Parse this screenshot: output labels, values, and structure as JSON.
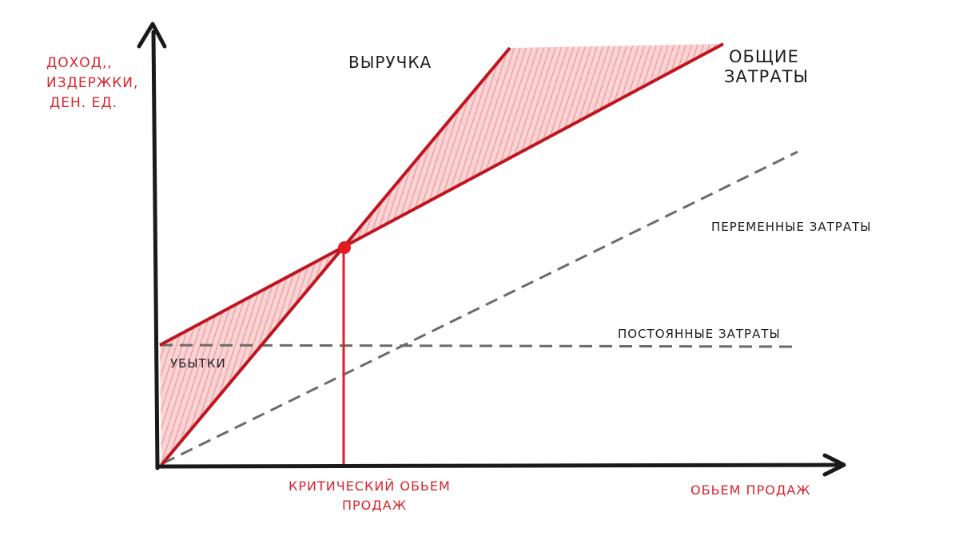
{
  "labels": {
    "y_axis": [
      "ДОХОД,,",
      "ИЗДЕРЖКИ,",
      "ДЕН. ЕД."
    ],
    "revenue": "ВЫРУЧКА",
    "total_costs": [
      "ОБЩИЕ",
      "ЗАТРАТЫ"
    ],
    "variable_costs": "ПЕРЕМЕННЫЕ ЗАТРАТЫ",
    "fixed_costs": "ПОСТОЯННЫЕ ЗАТРАТЫ",
    "losses": "УБЫТКИ",
    "break_even": [
      "КРИТИЧЕСКИЙ ОБЬЕМ",
      "ПРОДАЖ"
    ],
    "x_axis": "ОБЬЕМ ПРОДАЖ"
  },
  "colors": {
    "axis": "#1a1a1a",
    "accent_red": "#c0151f",
    "label_red": "#d8232a",
    "fill_pink": "#f4a8ab",
    "dash_gray": "#6b6b6b",
    "text_dark": "#1e1e1e"
  }
}
